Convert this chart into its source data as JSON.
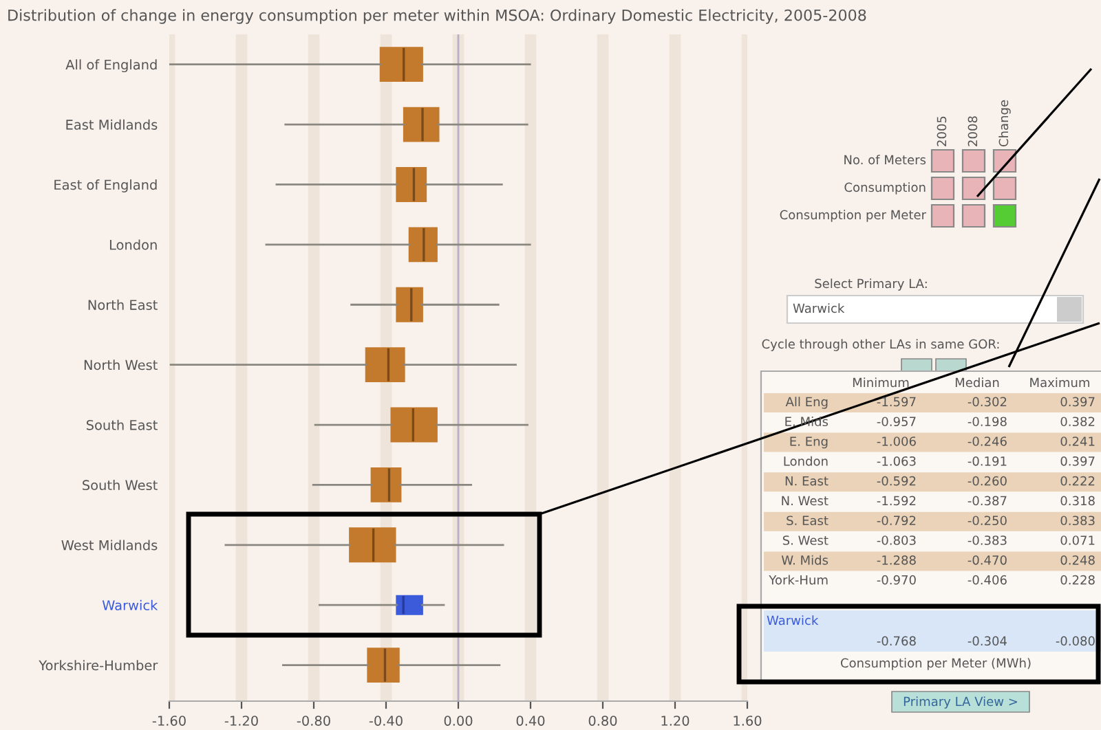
{
  "chart_data": [
    {
      "type": "box",
      "orientation": "horizontal",
      "title": "Distribution of change in energy consumption per meter within MSOA: Ordinary Domestic Electricity, 2005-2008",
      "categories": [
        "All of England",
        "East Midlands",
        "East of England",
        "London",
        "North East",
        "North West",
        "South East",
        "South West",
        "West Midlands",
        "Warwick",
        "Yorkshire-Humber"
      ],
      "series": [
        {
          "color": "#c47a2c",
          "boxes": [
            {
              "low": -1.597,
              "q1": -0.43,
              "median": -0.302,
              "q3": -0.2,
              "high": 0.397
            },
            {
              "low": -0.957,
              "q1": -0.3,
              "median": -0.198,
              "q3": -0.11,
              "high": 0.382
            },
            {
              "low": -1.006,
              "q1": -0.34,
              "median": -0.246,
              "q3": -0.18,
              "high": 0.241
            },
            {
              "low": -1.063,
              "q1": -0.27,
              "median": -0.191,
              "q3": -0.12,
              "high": 0.397
            },
            {
              "low": -0.592,
              "q1": -0.34,
              "median": -0.26,
              "q3": -0.2,
              "high": 0.222
            },
            {
              "low": -1.592,
              "q1": -0.51,
              "median": -0.387,
              "q3": -0.3,
              "high": 0.318
            },
            {
              "low": -0.792,
              "q1": -0.37,
              "median": -0.25,
              "q3": -0.12,
              "high": 0.383
            },
            {
              "low": -0.803,
              "q1": -0.48,
              "median": -0.383,
              "q3": -0.32,
              "high": 0.071
            },
            {
              "low": -1.288,
              "q1": -0.6,
              "median": -0.47,
              "q3": -0.35,
              "high": 0.248
            },
            null,
            {
              "low": -0.97,
              "q1": -0.5,
              "median": -0.406,
              "q3": -0.33,
              "high": 0.228
            }
          ]
        },
        {
          "color": "#3b5bdb",
          "boxes": [
            null,
            null,
            null,
            null,
            null,
            null,
            null,
            null,
            null,
            {
              "low": -0.768,
              "q1": -0.34,
              "median": -0.304,
              "q3": -0.2,
              "high": -0.08
            },
            null
          ]
        }
      ],
      "xlim": [
        -1.6,
        1.6
      ],
      "xticks": [
        {
          "value": -1.6,
          "label": "-1.60"
        },
        {
          "value": -1.2,
          "label": "-1.20"
        },
        {
          "value": -0.8,
          "label": "-0.80"
        },
        {
          "value": -0.4,
          "label": "-0.40"
        },
        {
          "value": 0,
          "label": "0.00"
        },
        {
          "value": 0.4,
          "label": "0.40"
        },
        {
          "value": 0.8,
          "label": "0.80"
        },
        {
          "value": 1.2,
          "label": "1.20"
        },
        {
          "value": 1.6,
          "label": "1.60"
        }
      ],
      "grid": "x",
      "ref_lines": [
        {
          "axis": "x",
          "value": 0,
          "color": "#b8b0c8"
        }
      ]
    },
    {
      "type": "other",
      "annotations": [
        "2005",
        "2008",
        "Change",
        "No. of Meters",
        "Consumption",
        "Consumption per Meter",
        "Select Primary LA:",
        "Warwick",
        "Cycle through other LAs in same GOR:",
        "Minimum",
        "Median",
        "Maximum",
        "All Eng",
        "-1.597",
        "-0.302",
        "0.397",
        "E. Mids",
        "-0.957",
        "-0.198",
        "0.382",
        "E. Eng",
        "-1.006",
        "-0.246",
        "0.241",
        "London",
        "-1.063",
        "-0.191",
        "0.397",
        "N. East",
        "-0.592",
        "-0.260",
        "0.222",
        "N. West",
        "-1.592",
        "-0.387",
        "0.318",
        "S. East",
        "-0.792",
        "-0.250",
        "0.383",
        "S. West",
        "-0.803",
        "-0.383",
        "0.071",
        "W. Mids",
        "-1.288",
        "-0.470",
        "0.248",
        "York-Hum",
        "-0.970",
        "-0.406",
        "0.228",
        "Warwick",
        "-0.768",
        "-0.304",
        "-0.080",
        "Consumption per Meter (MWh)",
        "Primary LA View >"
      ]
    }
  ]
}
